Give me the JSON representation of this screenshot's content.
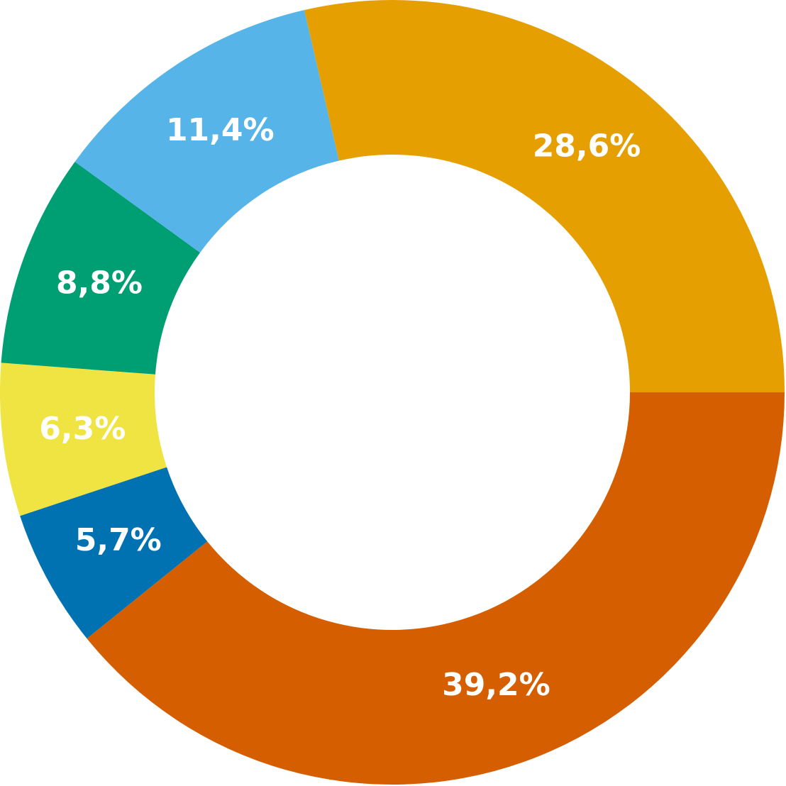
{
  "chart_data": {
    "type": "donut",
    "values": [
      39.2,
      5.7,
      6.3,
      8.8,
      11.4,
      28.6
    ],
    "value_labels": [
      "39,2%",
      "5,7%",
      "6,3%",
      "8,8%",
      "11,4%",
      "28,6%"
    ],
    "colors": [
      "#d55e00",
      "#0072b2",
      "#f0e442",
      "#009e73",
      "#56b4e9",
      "#e69f00"
    ]
  }
}
